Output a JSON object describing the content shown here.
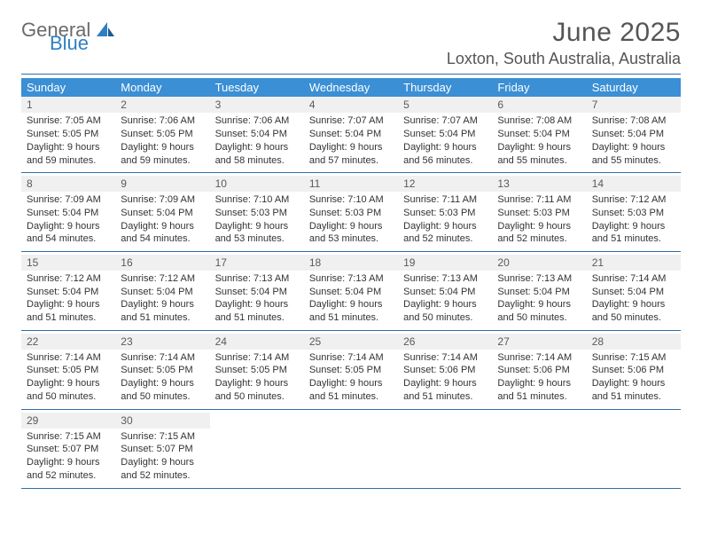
{
  "brand": {
    "general": "General",
    "blue": "Blue"
  },
  "header": {
    "month": "June 2025",
    "location": "Loxton, South Australia, Australia"
  },
  "colors": {
    "header_bg": "#3b8fd4",
    "rule": "#2f6fa8",
    "date_bg": "#f0f0f0",
    "text": "#333333",
    "logo_gray": "#6b6b6b",
    "logo_blue": "#2f7fc2"
  },
  "day_headers": [
    "Sunday",
    "Monday",
    "Tuesday",
    "Wednesday",
    "Thursday",
    "Friday",
    "Saturday"
  ],
  "weeks": [
    [
      {
        "date": "1",
        "sunrise": "Sunrise: 7:05 AM",
        "sunset": "Sunset: 5:05 PM",
        "daylight1": "Daylight: 9 hours",
        "daylight2": "and 59 minutes."
      },
      {
        "date": "2",
        "sunrise": "Sunrise: 7:06 AM",
        "sunset": "Sunset: 5:05 PM",
        "daylight1": "Daylight: 9 hours",
        "daylight2": "and 59 minutes."
      },
      {
        "date": "3",
        "sunrise": "Sunrise: 7:06 AM",
        "sunset": "Sunset: 5:04 PM",
        "daylight1": "Daylight: 9 hours",
        "daylight2": "and 58 minutes."
      },
      {
        "date": "4",
        "sunrise": "Sunrise: 7:07 AM",
        "sunset": "Sunset: 5:04 PM",
        "daylight1": "Daylight: 9 hours",
        "daylight2": "and 57 minutes."
      },
      {
        "date": "5",
        "sunrise": "Sunrise: 7:07 AM",
        "sunset": "Sunset: 5:04 PM",
        "daylight1": "Daylight: 9 hours",
        "daylight2": "and 56 minutes."
      },
      {
        "date": "6",
        "sunrise": "Sunrise: 7:08 AM",
        "sunset": "Sunset: 5:04 PM",
        "daylight1": "Daylight: 9 hours",
        "daylight2": "and 55 minutes."
      },
      {
        "date": "7",
        "sunrise": "Sunrise: 7:08 AM",
        "sunset": "Sunset: 5:04 PM",
        "daylight1": "Daylight: 9 hours",
        "daylight2": "and 55 minutes."
      }
    ],
    [
      {
        "date": "8",
        "sunrise": "Sunrise: 7:09 AM",
        "sunset": "Sunset: 5:04 PM",
        "daylight1": "Daylight: 9 hours",
        "daylight2": "and 54 minutes."
      },
      {
        "date": "9",
        "sunrise": "Sunrise: 7:09 AM",
        "sunset": "Sunset: 5:04 PM",
        "daylight1": "Daylight: 9 hours",
        "daylight2": "and 54 minutes."
      },
      {
        "date": "10",
        "sunrise": "Sunrise: 7:10 AM",
        "sunset": "Sunset: 5:03 PM",
        "daylight1": "Daylight: 9 hours",
        "daylight2": "and 53 minutes."
      },
      {
        "date": "11",
        "sunrise": "Sunrise: 7:10 AM",
        "sunset": "Sunset: 5:03 PM",
        "daylight1": "Daylight: 9 hours",
        "daylight2": "and 53 minutes."
      },
      {
        "date": "12",
        "sunrise": "Sunrise: 7:11 AM",
        "sunset": "Sunset: 5:03 PM",
        "daylight1": "Daylight: 9 hours",
        "daylight2": "and 52 minutes."
      },
      {
        "date": "13",
        "sunrise": "Sunrise: 7:11 AM",
        "sunset": "Sunset: 5:03 PM",
        "daylight1": "Daylight: 9 hours",
        "daylight2": "and 52 minutes."
      },
      {
        "date": "14",
        "sunrise": "Sunrise: 7:12 AM",
        "sunset": "Sunset: 5:03 PM",
        "daylight1": "Daylight: 9 hours",
        "daylight2": "and 51 minutes."
      }
    ],
    [
      {
        "date": "15",
        "sunrise": "Sunrise: 7:12 AM",
        "sunset": "Sunset: 5:04 PM",
        "daylight1": "Daylight: 9 hours",
        "daylight2": "and 51 minutes."
      },
      {
        "date": "16",
        "sunrise": "Sunrise: 7:12 AM",
        "sunset": "Sunset: 5:04 PM",
        "daylight1": "Daylight: 9 hours",
        "daylight2": "and 51 minutes."
      },
      {
        "date": "17",
        "sunrise": "Sunrise: 7:13 AM",
        "sunset": "Sunset: 5:04 PM",
        "daylight1": "Daylight: 9 hours",
        "daylight2": "and 51 minutes."
      },
      {
        "date": "18",
        "sunrise": "Sunrise: 7:13 AM",
        "sunset": "Sunset: 5:04 PM",
        "daylight1": "Daylight: 9 hours",
        "daylight2": "and 51 minutes."
      },
      {
        "date": "19",
        "sunrise": "Sunrise: 7:13 AM",
        "sunset": "Sunset: 5:04 PM",
        "daylight1": "Daylight: 9 hours",
        "daylight2": "and 50 minutes."
      },
      {
        "date": "20",
        "sunrise": "Sunrise: 7:13 AM",
        "sunset": "Sunset: 5:04 PM",
        "daylight1": "Daylight: 9 hours",
        "daylight2": "and 50 minutes."
      },
      {
        "date": "21",
        "sunrise": "Sunrise: 7:14 AM",
        "sunset": "Sunset: 5:04 PM",
        "daylight1": "Daylight: 9 hours",
        "daylight2": "and 50 minutes."
      }
    ],
    [
      {
        "date": "22",
        "sunrise": "Sunrise: 7:14 AM",
        "sunset": "Sunset: 5:05 PM",
        "daylight1": "Daylight: 9 hours",
        "daylight2": "and 50 minutes."
      },
      {
        "date": "23",
        "sunrise": "Sunrise: 7:14 AM",
        "sunset": "Sunset: 5:05 PM",
        "daylight1": "Daylight: 9 hours",
        "daylight2": "and 50 minutes."
      },
      {
        "date": "24",
        "sunrise": "Sunrise: 7:14 AM",
        "sunset": "Sunset: 5:05 PM",
        "daylight1": "Daylight: 9 hours",
        "daylight2": "and 50 minutes."
      },
      {
        "date": "25",
        "sunrise": "Sunrise: 7:14 AM",
        "sunset": "Sunset: 5:05 PM",
        "daylight1": "Daylight: 9 hours",
        "daylight2": "and 51 minutes."
      },
      {
        "date": "26",
        "sunrise": "Sunrise: 7:14 AM",
        "sunset": "Sunset: 5:06 PM",
        "daylight1": "Daylight: 9 hours",
        "daylight2": "and 51 minutes."
      },
      {
        "date": "27",
        "sunrise": "Sunrise: 7:14 AM",
        "sunset": "Sunset: 5:06 PM",
        "daylight1": "Daylight: 9 hours",
        "daylight2": "and 51 minutes."
      },
      {
        "date": "28",
        "sunrise": "Sunrise: 7:15 AM",
        "sunset": "Sunset: 5:06 PM",
        "daylight1": "Daylight: 9 hours",
        "daylight2": "and 51 minutes."
      }
    ],
    [
      {
        "date": "29",
        "sunrise": "Sunrise: 7:15 AM",
        "sunset": "Sunset: 5:07 PM",
        "daylight1": "Daylight: 9 hours",
        "daylight2": "and 52 minutes."
      },
      {
        "date": "30",
        "sunrise": "Sunrise: 7:15 AM",
        "sunset": "Sunset: 5:07 PM",
        "daylight1": "Daylight: 9 hours",
        "daylight2": "and 52 minutes."
      },
      null,
      null,
      null,
      null,
      null
    ]
  ]
}
